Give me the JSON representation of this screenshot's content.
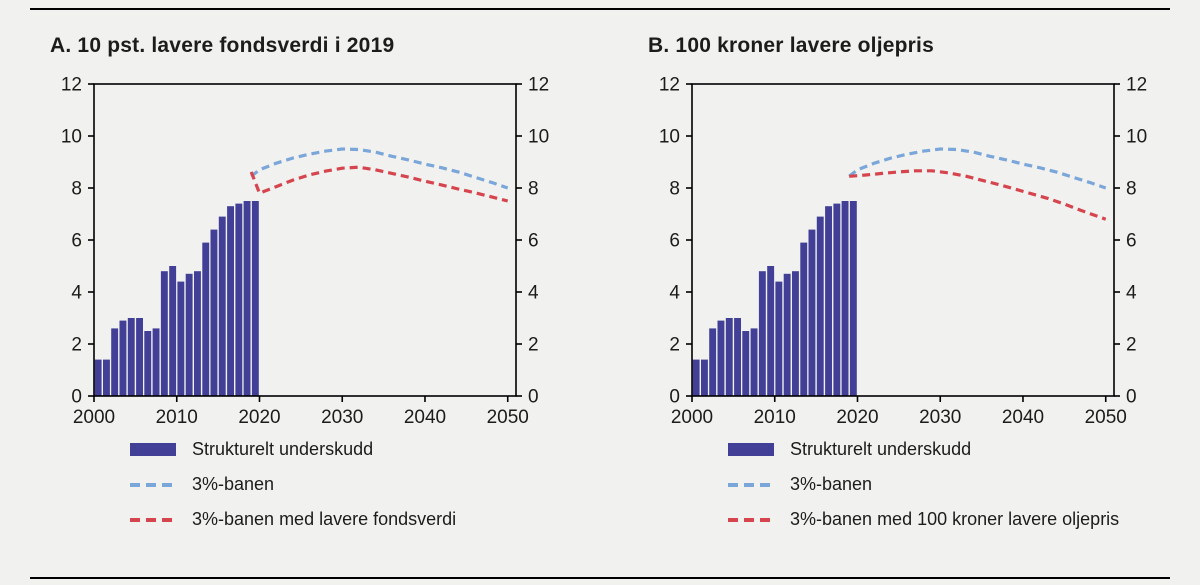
{
  "page": {
    "background": "#f1f1ef",
    "text_color": "#1c1c1a",
    "rule_color": "#000000"
  },
  "panels": [
    {
      "id": "A",
      "title": "A. 10 pst. lavere fondsverdi i 2019",
      "legend": [
        {
          "type": "bar",
          "color": "#423f96",
          "label": "Strukturelt underskudd"
        },
        {
          "type": "dashed",
          "color": "#7ba6d9",
          "label": "3%-banen"
        },
        {
          "type": "dashed",
          "color": "#d6454d",
          "label": "3%-banen med lavere fondsverdi"
        }
      ]
    },
    {
      "id": "B",
      "title": "B.  100 kroner lavere oljepris",
      "legend": [
        {
          "type": "bar",
          "color": "#423f96",
          "label": "Strukturelt underskudd"
        },
        {
          "type": "dashed",
          "color": "#7ba6d9",
          "label": "3%-banen"
        },
        {
          "type": "dashed",
          "color": "#d6454d",
          "label": "3%-banen med 100 kroner lavere oljepris"
        }
      ]
    }
  ],
  "chart_data": [
    {
      "type": "bar+line",
      "title": "A. 10 pst. lavere fondsverdi i 2019",
      "xlabel": "",
      "ylabel": "",
      "xlim": [
        2000,
        2051
      ],
      "ylim": [
        0,
        12
      ],
      "xticks": [
        2000,
        2010,
        2020,
        2030,
        2040,
        2050
      ],
      "yticks": [
        0,
        2,
        4,
        6,
        8,
        10,
        12
      ],
      "dual_y_axis": true,
      "grid": false,
      "bar_series": {
        "name": "Strukturelt underskudd",
        "color": "#423f96",
        "start_year": 2000,
        "values": [
          1.4,
          1.4,
          2.6,
          2.9,
          3.0,
          3.0,
          2.5,
          2.6,
          4.8,
          5.0,
          4.4,
          4.7,
          4.8,
          5.9,
          6.4,
          6.9,
          7.3,
          7.4,
          7.5,
          7.5
        ]
      },
      "line_series": [
        {
          "name": "3%-banen",
          "color": "#7ba6d9",
          "style": "dashed",
          "points": [
            [
              2019,
              8.45
            ],
            [
              2020,
              8.7
            ],
            [
              2022,
              8.95
            ],
            [
              2024,
              9.15
            ],
            [
              2026,
              9.3
            ],
            [
              2028,
              9.42
            ],
            [
              2030,
              9.5
            ],
            [
              2032,
              9.48
            ],
            [
              2034,
              9.38
            ],
            [
              2036,
              9.22
            ],
            [
              2038,
              9.08
            ],
            [
              2040,
              8.92
            ],
            [
              2042,
              8.78
            ],
            [
              2044,
              8.62
            ],
            [
              2046,
              8.42
            ],
            [
              2048,
              8.22
            ],
            [
              2050,
              8.0
            ]
          ]
        },
        {
          "name": "3%-banen med lavere fondsverdi",
          "color": "#d6454d",
          "style": "dashed",
          "points": [
            [
              2019,
              8.62
            ],
            [
              2020,
              7.8
            ],
            [
              2022,
              8.05
            ],
            [
              2024,
              8.3
            ],
            [
              2026,
              8.5
            ],
            [
              2028,
              8.65
            ],
            [
              2030,
              8.76
            ],
            [
              2032,
              8.8
            ],
            [
              2034,
              8.7
            ],
            [
              2036,
              8.56
            ],
            [
              2038,
              8.42
            ],
            [
              2040,
              8.26
            ],
            [
              2042,
              8.12
            ],
            [
              2044,
              7.96
            ],
            [
              2046,
              7.82
            ],
            [
              2048,
              7.66
            ],
            [
              2050,
              7.5
            ]
          ]
        }
      ]
    },
    {
      "type": "bar+line",
      "title": "B. 100 kroner lavere oljepris",
      "xlabel": "",
      "ylabel": "",
      "xlim": [
        2000,
        2051
      ],
      "ylim": [
        0,
        12
      ],
      "xticks": [
        2000,
        2010,
        2020,
        2030,
        2040,
        2050
      ],
      "yticks": [
        0,
        2,
        4,
        6,
        8,
        10,
        12
      ],
      "dual_y_axis": true,
      "grid": false,
      "bar_series": {
        "name": "Strukturelt underskudd",
        "color": "#423f96",
        "start_year": 2000,
        "values": [
          1.4,
          1.4,
          2.6,
          2.9,
          3.0,
          3.0,
          2.5,
          2.6,
          4.8,
          5.0,
          4.4,
          4.7,
          4.8,
          5.9,
          6.4,
          6.9,
          7.3,
          7.4,
          7.5,
          7.5
        ]
      },
      "line_series": [
        {
          "name": "3%-banen",
          "color": "#7ba6d9",
          "style": "dashed",
          "points": [
            [
              2019,
              8.45
            ],
            [
              2020,
              8.7
            ],
            [
              2022,
              8.95
            ],
            [
              2024,
              9.15
            ],
            [
              2026,
              9.3
            ],
            [
              2028,
              9.42
            ],
            [
              2030,
              9.5
            ],
            [
              2032,
              9.48
            ],
            [
              2034,
              9.38
            ],
            [
              2036,
              9.22
            ],
            [
              2038,
              9.08
            ],
            [
              2040,
              8.92
            ],
            [
              2042,
              8.78
            ],
            [
              2044,
              8.62
            ],
            [
              2046,
              8.42
            ],
            [
              2048,
              8.22
            ],
            [
              2050,
              8.0
            ]
          ]
        },
        {
          "name": "3%-banen med 100 kroner lavere oljepris",
          "color": "#d6454d",
          "style": "dashed",
          "points": [
            [
              2019,
              8.45
            ],
            [
              2021,
              8.5
            ],
            [
              2023,
              8.56
            ],
            [
              2025,
              8.62
            ],
            [
              2027,
              8.66
            ],
            [
              2029,
              8.66
            ],
            [
              2031,
              8.58
            ],
            [
              2033,
              8.46
            ],
            [
              2035,
              8.3
            ],
            [
              2037,
              8.14
            ],
            [
              2039,
              7.96
            ],
            [
              2041,
              7.78
            ],
            [
              2043,
              7.6
            ],
            [
              2045,
              7.38
            ],
            [
              2047,
              7.14
            ],
            [
              2050,
              6.8
            ]
          ]
        }
      ]
    }
  ]
}
